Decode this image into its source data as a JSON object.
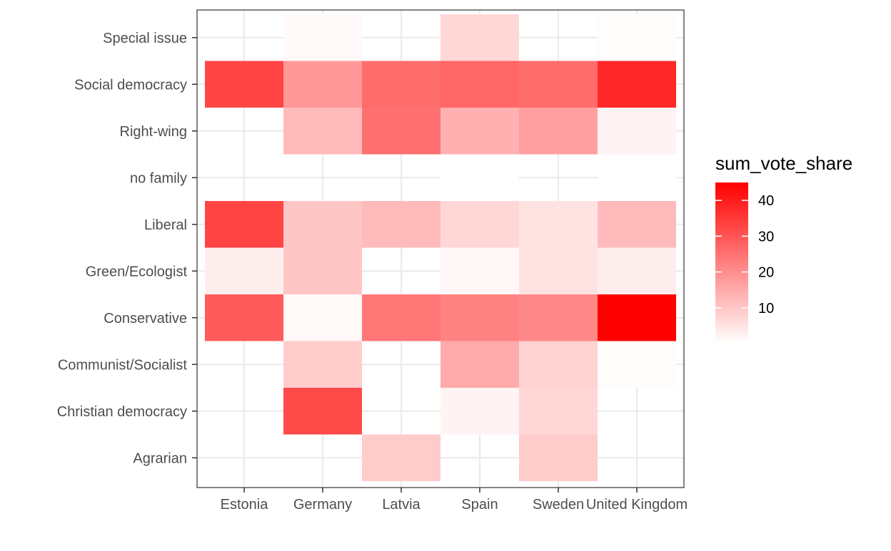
{
  "chart_data": {
    "type": "heatmap",
    "x_categories": [
      "Estonia",
      "Germany",
      "Latvia",
      "Spain",
      "Sweden",
      "United Kingdom"
    ],
    "y_categories": [
      "Agrarian",
      "Christian democracy",
      "Communist/Socialist",
      "Conservative",
      "Green/Ecologist",
      "Liberal",
      "no family",
      "Right-wing",
      "Social democracy",
      "Special issue"
    ],
    "values": [
      [
        null,
        null,
        9,
        null,
        9,
        null
      ],
      [
        null,
        32,
        null,
        2,
        7,
        null
      ],
      [
        null,
        9,
        null,
        15,
        8,
        0.5
      ],
      [
        29,
        1,
        24,
        22,
        21,
        45
      ],
      [
        3,
        10,
        null,
        1.5,
        5,
        3
      ],
      [
        33,
        10,
        12,
        7,
        5,
        12
      ],
      [
        null,
        null,
        null,
        0,
        null,
        0
      ],
      [
        null,
        12,
        25,
        14,
        17,
        2
      ],
      [
        33,
        18,
        26,
        27,
        26,
        38
      ],
      [
        null,
        1,
        null,
        7,
        null,
        0.5
      ]
    ],
    "legend": {
      "title": "sum_vote_share",
      "min": 0,
      "max": 45,
      "ticks": [
        10,
        20,
        30,
        40
      ],
      "low_color": "#ffffff",
      "high_color": "#ff0000"
    },
    "xlabel": "",
    "ylabel": "",
    "grid": true,
    "legend_position": "right"
  }
}
